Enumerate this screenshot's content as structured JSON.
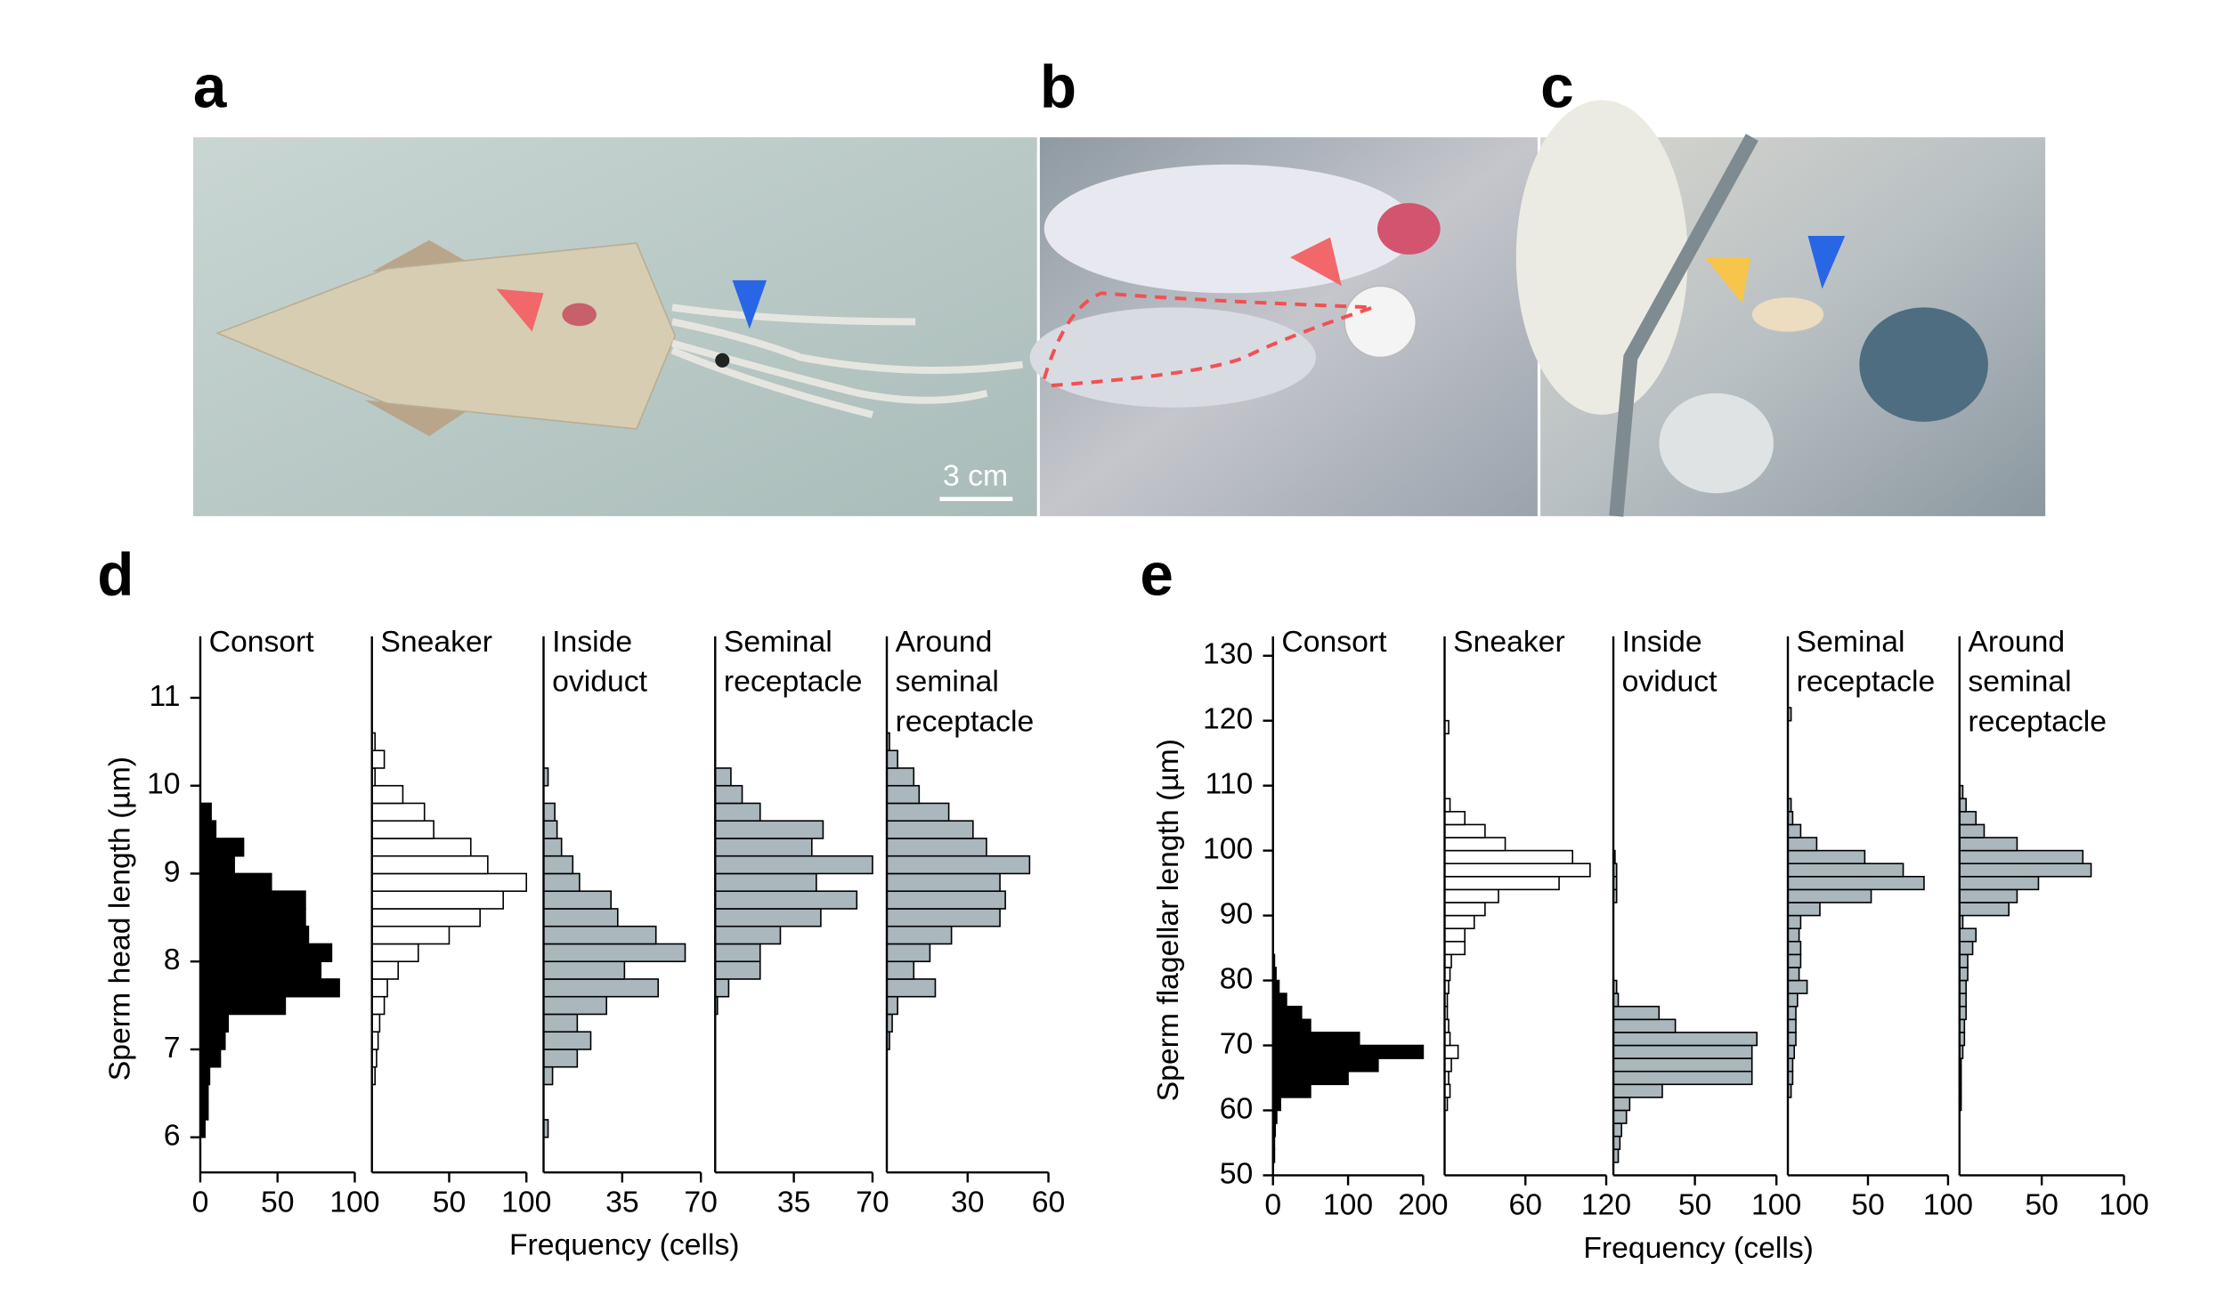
{
  "figure": {
    "panel_labels": [
      "a",
      "b",
      "c",
      "d",
      "e"
    ],
    "scale_bar": "3 cm"
  },
  "chart_data": [
    {
      "type": "histogram",
      "orientation": "horizontal",
      "title": [
        "Consort"
      ],
      "color": "#000000",
      "edgecolor": "#000000",
      "bins": [
        6,
        6.2,
        6.4,
        6.6,
        6.8,
        7,
        7.2,
        7.4,
        7.6,
        7.8,
        8,
        8.2,
        8.4,
        8.6,
        8.8,
        9,
        9.2,
        9.4,
        9.6,
        9.8,
        10,
        10.2,
        10.4,
        10.6
      ],
      "values": [
        3,
        5,
        5,
        6,
        13,
        16,
        18,
        55,
        90,
        78,
        85,
        70,
        68,
        68,
        46,
        22,
        28,
        10,
        7,
        0,
        0,
        0,
        0
      ],
      "xlim": [
        0,
        100
      ],
      "xticks": [
        0,
        50,
        100
      ],
      "ylim": [
        5.6,
        11.7
      ],
      "yticks": [
        6,
        7,
        8,
        9,
        10,
        11
      ],
      "ylabel": "Sperm head length (µm)"
    },
    {
      "type": "histogram",
      "orientation": "horizontal",
      "title": [
        "Sneaker"
      ],
      "color": "#ffffff",
      "edgecolor": "#000000",
      "bins": [
        6,
        6.2,
        6.4,
        6.6,
        6.8,
        7,
        7.2,
        7.4,
        7.6,
        7.8,
        8,
        8.2,
        8.4,
        8.6,
        8.8,
        9,
        9.2,
        9.4,
        9.6,
        9.8,
        10,
        10.2,
        10.4,
        10.6
      ],
      "values": [
        0,
        0,
        0,
        2,
        3,
        4,
        5,
        8,
        10,
        17,
        30,
        50,
        70,
        85,
        100,
        75,
        64,
        40,
        34,
        20,
        2,
        8,
        2
      ],
      "xlim": [
        0,
        100
      ],
      "xticks": [
        50,
        100
      ],
      "ylim": [
        5.6,
        11.7
      ]
    },
    {
      "type": "histogram",
      "orientation": "horizontal",
      "title": [
        "Inside",
        "oviduct"
      ],
      "color": "#aab7bd",
      "edgecolor": "#000000",
      "bins": [
        6,
        6.2,
        6.4,
        6.6,
        6.8,
        7,
        7.2,
        7.4,
        7.6,
        7.8,
        8,
        8.2,
        8.4,
        8.6,
        8.8,
        9,
        9.2,
        9.4,
        9.6,
        9.8,
        10,
        10.2,
        10.4,
        10.6
      ],
      "values": [
        2,
        0,
        0,
        4,
        15,
        21,
        15,
        28,
        51,
        36,
        63,
        50,
        33,
        30,
        16,
        13,
        8,
        6,
        5,
        0,
        2,
        0,
        0
      ],
      "xlim": [
        0,
        70
      ],
      "xticks": [
        35,
        70
      ],
      "ylim": [
        5.6,
        11.7
      ],
      "xlabel": "Frequency (cells)"
    },
    {
      "type": "histogram",
      "orientation": "horizontal",
      "title": [
        "Seminal",
        "receptacle"
      ],
      "color": "#aab7bd",
      "edgecolor": "#000000",
      "bins": [
        6,
        6.2,
        6.4,
        6.6,
        6.8,
        7,
        7.2,
        7.4,
        7.6,
        7.8,
        8,
        8.2,
        8.4,
        8.6,
        8.8,
        9,
        9.2,
        9.4,
        9.6,
        9.8,
        10,
        10.2,
        10.4,
        10.6
      ],
      "values": [
        0,
        0,
        0,
        0,
        0,
        0,
        0,
        1,
        6,
        20,
        20,
        29,
        47,
        63,
        45,
        70,
        43,
        48,
        20,
        12,
        7,
        0,
        0
      ],
      "xlim": [
        0,
        70
      ],
      "xticks": [
        35,
        70
      ],
      "ylim": [
        5.6,
        11.7
      ]
    },
    {
      "type": "histogram",
      "orientation": "horizontal",
      "title": [
        "Around",
        "seminal",
        "receptacle"
      ],
      "color": "#aab7bd",
      "edgecolor": "#000000",
      "bins": [
        6,
        6.2,
        6.4,
        6.6,
        6.8,
        7,
        7.2,
        7.4,
        7.6,
        7.8,
        8,
        8.2,
        8.4,
        8.6,
        8.8,
        9,
        9.2,
        9.4,
        9.6,
        9.8,
        10,
        10.2,
        10.4,
        10.6
      ],
      "values": [
        0,
        0,
        0,
        0,
        0,
        1,
        2,
        4,
        18,
        10,
        16,
        24,
        42,
        44,
        42,
        53,
        37,
        32,
        23,
        12,
        10,
        4,
        1
      ],
      "xlim": [
        0,
        60
      ],
      "xticks": [
        30,
        60
      ],
      "ylim": [
        5.6,
        11.7
      ]
    },
    {
      "type": "histogram",
      "orientation": "horizontal",
      "title": [
        "Consort"
      ],
      "color": "#000000",
      "edgecolor": "#000000",
      "bins": [
        50,
        52,
        54,
        56,
        58,
        60,
        62,
        64,
        66,
        68,
        70,
        72,
        74,
        76,
        78,
        80,
        82,
        84,
        86,
        88,
        90,
        92,
        94,
        96,
        98,
        100,
        102,
        104,
        106,
        108,
        110,
        112,
        114,
        116,
        118,
        120,
        122,
        124,
        126,
        128,
        130
      ],
      "values": [
        0,
        2,
        2,
        3,
        5,
        10,
        50,
        100,
        140,
        200,
        115,
        50,
        38,
        18,
        8,
        4,
        2,
        0,
        0,
        0,
        0,
        0,
        0,
        0,
        0,
        0,
        0,
        0,
        0,
        0,
        0,
        0,
        0,
        0,
        0,
        0,
        0,
        0,
        0,
        0
      ],
      "xlim": [
        0,
        200
      ],
      "xticks": [
        0,
        100,
        200
      ],
      "ylim": [
        50,
        133
      ],
      "yticks": [
        50,
        60,
        70,
        80,
        90,
        100,
        110,
        120,
        130
      ],
      "ylabel": "Sperm flagellar length (µm)"
    },
    {
      "type": "histogram",
      "orientation": "horizontal",
      "title": [
        "Sneaker"
      ],
      "color": "#ffffff",
      "edgecolor": "#000000",
      "bins": [
        50,
        52,
        54,
        56,
        58,
        60,
        62,
        64,
        66,
        68,
        70,
        72,
        74,
        76,
        78,
        80,
        82,
        84,
        86,
        88,
        90,
        92,
        94,
        96,
        98,
        100,
        102,
        104,
        106,
        108,
        110,
        112,
        114,
        116,
        118,
        120,
        122,
        124,
        126,
        128,
        130
      ],
      "values": [
        0,
        0,
        0,
        0,
        0,
        2,
        4,
        3,
        5,
        10,
        4,
        3,
        2,
        2,
        3,
        4,
        5,
        15,
        15,
        22,
        30,
        40,
        85,
        108,
        95,
        45,
        30,
        15,
        4,
        0,
        0,
        0,
        0,
        0,
        3,
        0,
        0,
        0,
        0,
        0
      ],
      "xlim": [
        0,
        120
      ],
      "xticks": [
        60,
        120
      ],
      "ylim": [
        50,
        133
      ]
    },
    {
      "type": "histogram",
      "orientation": "horizontal",
      "title": [
        "Inside",
        "oviduct"
      ],
      "color": "#aab7bd",
      "edgecolor": "#000000",
      "bins": [
        50,
        52,
        54,
        56,
        58,
        60,
        62,
        64,
        66,
        68,
        70,
        72,
        74,
        76,
        78,
        80,
        82,
        84,
        86,
        88,
        90,
        92,
        94,
        96,
        98,
        100,
        102,
        104,
        106,
        108,
        110,
        112,
        114,
        116,
        118,
        120,
        122,
        124,
        126,
        128,
        130
      ],
      "values": [
        0,
        3,
        4,
        5,
        8,
        10,
        30,
        85,
        85,
        85,
        88,
        38,
        28,
        3,
        2,
        0,
        0,
        0,
        0,
        0,
        0,
        2,
        2,
        2,
        1,
        0,
        0,
        0,
        0,
        0,
        0,
        0,
        0,
        0,
        0,
        0,
        0,
        0,
        0,
        0
      ],
      "xlim": [
        0,
        100
      ],
      "xticks": [
        50,
        100
      ],
      "ylim": [
        50,
        133
      ],
      "xlabel": "Frequency (cells)"
    },
    {
      "type": "histogram",
      "orientation": "horizontal",
      "title": [
        "Seminal",
        "receptacle"
      ],
      "color": "#aab7bd",
      "edgecolor": "#000000",
      "bins": [
        50,
        52,
        54,
        56,
        58,
        60,
        62,
        64,
        66,
        68,
        70,
        72,
        74,
        76,
        78,
        80,
        82,
        84,
        86,
        88,
        90,
        92,
        94,
        96,
        98,
        100,
        102,
        104,
        106,
        108,
        110,
        112,
        114,
        116,
        118,
        120,
        122,
        124,
        126,
        128,
        130
      ],
      "values": [
        0,
        0,
        0,
        0,
        0,
        0,
        2,
        3,
        3,
        4,
        5,
        5,
        5,
        6,
        12,
        7,
        8,
        8,
        7,
        8,
        20,
        52,
        85,
        72,
        48,
        18,
        8,
        3,
        2,
        0,
        0,
        0,
        0,
        0,
        0,
        2,
        0,
        0,
        0,
        0
      ],
      "xlim": [
        0,
        100
      ],
      "xticks": [
        50,
        100
      ],
      "ylim": [
        50,
        133
      ]
    },
    {
      "type": "histogram",
      "orientation": "horizontal",
      "title": [
        "Around",
        "seminal",
        "receptacle"
      ],
      "color": "#aab7bd",
      "edgecolor": "#000000",
      "bins": [
        50,
        52,
        54,
        56,
        58,
        60,
        62,
        64,
        66,
        68,
        70,
        72,
        74,
        76,
        78,
        80,
        82,
        84,
        86,
        88,
        90,
        92,
        94,
        96,
        98,
        100,
        102,
        104,
        106,
        108,
        110,
        112,
        114,
        116,
        118,
        120,
        122,
        124,
        126,
        128,
        130
      ],
      "values": [
        0,
        0,
        0,
        0,
        0,
        1,
        1,
        1,
        1,
        2,
        3,
        3,
        4,
        4,
        4,
        5,
        5,
        8,
        10,
        2,
        30,
        35,
        48,
        80,
        75,
        35,
        15,
        10,
        4,
        2,
        0,
        0,
        0,
        0,
        0,
        0,
        0,
        0,
        0,
        0
      ],
      "xlim": [
        0,
        100
      ],
      "xticks": [
        50,
        100
      ],
      "ylim": [
        50,
        133
      ]
    }
  ]
}
